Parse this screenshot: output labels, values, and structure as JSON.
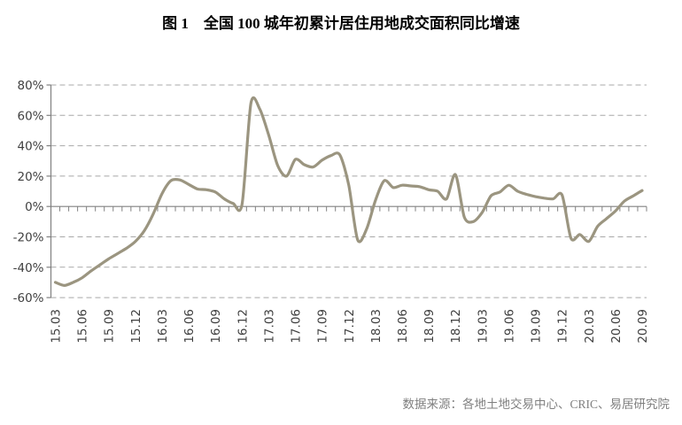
{
  "title": "图 1　全国 100 城年初累计居住用地成交面积同比增速",
  "source": "数据来源：各地土地交易中心、CRIC、易居研究院",
  "chart_data": {
    "type": "line",
    "title": "图 1　全国 100 城年初累计居住用地成交面积同比增速",
    "xlabel": "",
    "ylabel": "",
    "ylim": [
      -60,
      80
    ],
    "ytick_step": 20,
    "ytick_labels": [
      "80%",
      "60%",
      "40%",
      "20%",
      "0%",
      "-20%",
      "-40%",
      "-60%"
    ],
    "grid": "horizontal-dashed",
    "legend": "none",
    "line_color": "#9B9580",
    "grid_color": "#a8a8a8",
    "axis_color": "#808080",
    "tick_label_every": 3,
    "x": [
      "15.03",
      "15.04",
      "15.05",
      "15.06",
      "15.07",
      "15.08",
      "15.09",
      "15.10",
      "15.11",
      "15.12",
      "16.01",
      "16.02",
      "16.03",
      "16.04",
      "16.05",
      "16.06",
      "16.07",
      "16.08",
      "16.09",
      "16.10",
      "16.11",
      "16.12",
      "17.01",
      "17.02",
      "17.03",
      "17.04",
      "17.05",
      "17.06",
      "17.07",
      "17.08",
      "17.09",
      "17.10",
      "17.11",
      "17.12",
      "18.01",
      "18.02",
      "18.03",
      "18.04",
      "18.05",
      "18.06",
      "18.07",
      "18.08",
      "18.09",
      "18.10",
      "18.11",
      "18.12",
      "19.01",
      "19.02",
      "19.03",
      "19.04",
      "19.05",
      "19.06",
      "19.07",
      "19.08",
      "19.09",
      "19.10",
      "19.11",
      "19.12",
      "20.01",
      "20.02",
      "20.03",
      "20.04",
      "20.05",
      "20.06",
      "20.07",
      "20.08",
      "20.09"
    ],
    "values": [
      -50,
      -52,
      -50,
      -47,
      -42.5,
      -38.5,
      -34.5,
      -31,
      -27.5,
      -23,
      -16,
      -5,
      8.5,
      17,
      17.5,
      14.5,
      11.5,
      11,
      9.5,
      5,
      2,
      1.5,
      68,
      64,
      47,
      27,
      20,
      31,
      27.5,
      26,
      30.5,
      33.5,
      34,
      14,
      -22,
      -15,
      4,
      17,
      12.5,
      14,
      13.5,
      13,
      11,
      10,
      5,
      21,
      -7,
      -10,
      -4,
      7,
      9.5,
      14,
      10,
      8,
      6.5,
      5.5,
      5,
      7.5,
      -21,
      -18.5,
      -23,
      -13,
      -8,
      -3,
      3.5,
      7,
      10.5
    ],
    "visible_tick_labels": [
      "15.03",
      "15.06",
      "15.09",
      "15.12",
      "16.03",
      "16.06",
      "16.09",
      "16.12",
      "17.03",
      "17.06",
      "17.09",
      "17.12",
      "18.03",
      "18.06",
      "18.09",
      "18.12",
      "19.03",
      "19.06",
      "19.09",
      "19.12",
      "20.03",
      "20.06",
      "20.09"
    ]
  }
}
